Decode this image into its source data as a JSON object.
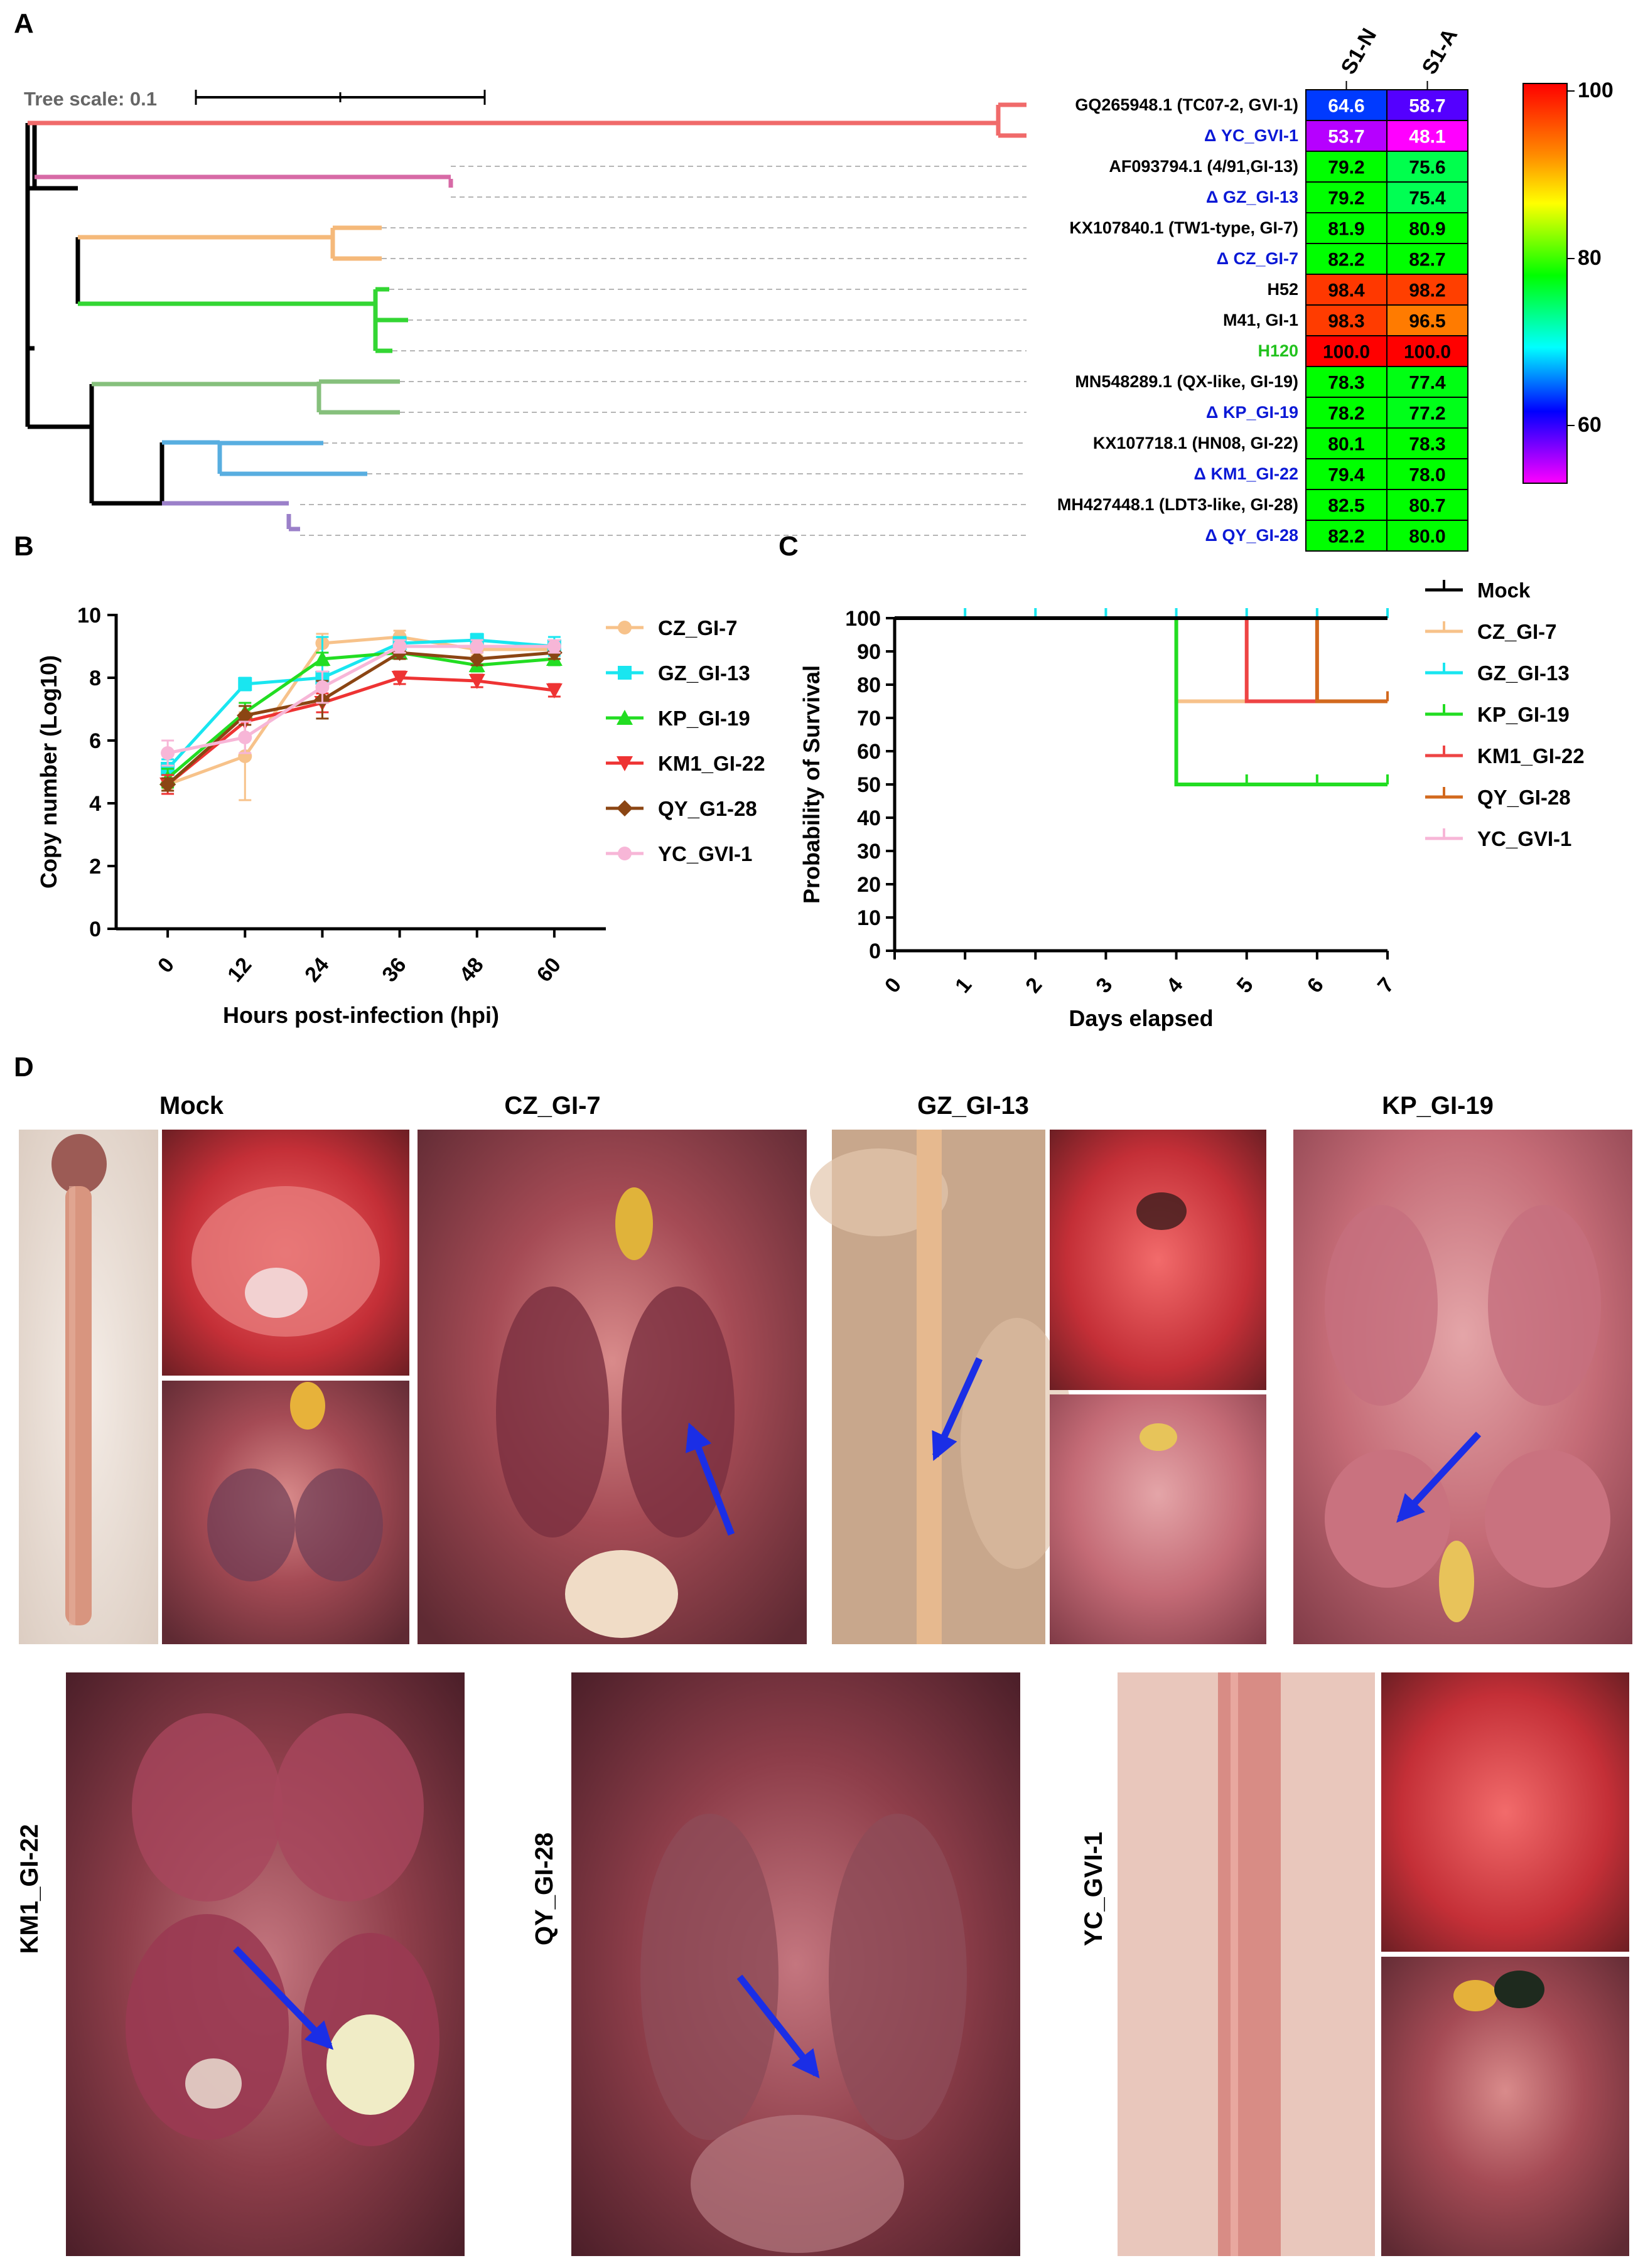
{
  "panels": {
    "a": "A",
    "b": "B",
    "c": "C",
    "d": "D"
  },
  "tree": {
    "scale_label": "Tree scale: 0.1",
    "leaves": [
      {
        "label": "GQ265948.1 (TC07-2, GVI-1)",
        "color": "#000000"
      },
      {
        "label": "Δ YC_GVI-1",
        "color": "#0a18d6"
      },
      {
        "label": "AF093794.1 (4/91,GI-13)",
        "color": "#000000"
      },
      {
        "label": "Δ GZ_GI-13",
        "color": "#0a18d6"
      },
      {
        "label": "KX107840.1 (TW1-type, GI-7)",
        "color": "#000000"
      },
      {
        "label": "Δ CZ_GI-7",
        "color": "#0a18d6"
      },
      {
        "label": "H52",
        "color": "#000000"
      },
      {
        "label": "M41, GI-1",
        "color": "#000000"
      },
      {
        "label": "H120",
        "color": "#22c21e"
      },
      {
        "label": "MN548289.1 (QX-like, GI-19)",
        "color": "#000000"
      },
      {
        "label": "Δ KP_GI-19",
        "color": "#0a18d6"
      },
      {
        "label": "KX107718.1 (HN08, GI-22)",
        "color": "#000000"
      },
      {
        "label": "Δ KM1_GI-22",
        "color": "#0a18d6"
      },
      {
        "label": "MH427448.1 (LDT3-like, GI-28)",
        "color": "#000000"
      },
      {
        "label": "Δ QY_GI-28",
        "color": "#0a18d6"
      }
    ],
    "clade_colors": [
      "#f06a6a",
      "#d76aa6",
      "#f5b97a",
      "#33d633",
      "#86c07c",
      "#58aee0",
      "#9b80c9"
    ]
  },
  "heatmap": {
    "columns": [
      "S1-N",
      "S1-A"
    ],
    "values": [
      [
        "64.6",
        "58.7"
      ],
      [
        "53.7",
        "48.1"
      ],
      [
        "79.2",
        "75.6"
      ],
      [
        "79.2",
        "75.4"
      ],
      [
        "81.9",
        "80.9"
      ],
      [
        "82.2",
        "82.7"
      ],
      [
        "98.4",
        "98.2"
      ],
      [
        "98.3",
        "96.5"
      ],
      [
        "100.0",
        "100.0"
      ],
      [
        "78.3",
        "77.4"
      ],
      [
        "78.2",
        "77.2"
      ],
      [
        "80.1",
        "78.3"
      ],
      [
        "79.4",
        "78.0"
      ],
      [
        "82.5",
        "80.7"
      ],
      [
        "82.2",
        "80.0"
      ]
    ],
    "scale_ticks": [
      "100",
      "80",
      "60"
    ]
  },
  "chart_data": [
    {
      "type": "line",
      "xlabel": "Hours post-infection (hpi)",
      "ylabel": "Copy number (Log10)",
      "x": [
        0,
        12,
        24,
        36,
        48,
        60
      ],
      "xticks": [
        "0",
        "12",
        "24",
        "36",
        "48",
        "60"
      ],
      "yticks": [
        "0",
        "2",
        "4",
        "6",
        "8",
        "10"
      ],
      "ylim": [
        0,
        10
      ],
      "series": [
        {
          "name": "CZ_GI-7",
          "color": "#f7c28a",
          "marker": "circle",
          "values": [
            4.6,
            5.5,
            9.1,
            9.3,
            8.9,
            8.9
          ],
          "err": [
            0.2,
            1.4,
            0.3,
            0.2,
            0.2,
            0.3
          ]
        },
        {
          "name": "GZ_GI-13",
          "color": "#19e6f0",
          "marker": "square",
          "values": [
            5.1,
            7.8,
            8.0,
            9.1,
            9.2,
            9.0
          ],
          "err": [
            0.3,
            0.2,
            1.3,
            0.2,
            0.2,
            0.3
          ]
        },
        {
          "name": "KP_GI-19",
          "color": "#22dd22",
          "marker": "triangle-up",
          "values": [
            4.8,
            6.9,
            8.6,
            8.8,
            8.4,
            8.6
          ],
          "err": [
            0.3,
            0.3,
            0.2,
            0.2,
            0.2,
            0.2
          ]
        },
        {
          "name": "KM1_GI-22",
          "color": "#ee3333",
          "marker": "triangle-down",
          "values": [
            4.6,
            6.6,
            7.2,
            8.0,
            7.9,
            7.6
          ],
          "err": [
            0.3,
            0.5,
            0.3,
            0.2,
            0.2,
            0.2
          ]
        },
        {
          "name": "QY_G1-28",
          "color": "#8b4513",
          "marker": "diamond",
          "values": [
            4.6,
            6.8,
            7.3,
            8.8,
            8.6,
            8.8
          ],
          "err": [
            0.2,
            0.3,
            0.6,
            0.2,
            0.2,
            0.2
          ]
        },
        {
          "name": "YC_GVI-1",
          "color": "#f7b6d7",
          "marker": "circle",
          "values": [
            5.6,
            6.1,
            7.7,
            9.0,
            9.0,
            9.0
          ],
          "err": [
            0.4,
            0.5,
            0.5,
            0.2,
            0.2,
            0.2
          ]
        }
      ]
    },
    {
      "type": "line",
      "step": true,
      "xlabel": "Days elapsed",
      "ylabel": "Probability of Survival",
      "xticks": [
        "0",
        "1",
        "2",
        "3",
        "4",
        "5",
        "6",
        "7"
      ],
      "yticks": [
        "0",
        "10",
        "20",
        "30",
        "40",
        "50",
        "60",
        "70",
        "80",
        "90",
        "100"
      ],
      "xlim": [
        0,
        7
      ],
      "ylim": [
        0,
        100
      ],
      "series": [
        {
          "name": "Mock",
          "color": "#000000",
          "steps": [
            [
              0,
              100
            ],
            [
              7,
              100
            ]
          ]
        },
        {
          "name": "CZ_GI-7",
          "color": "#f7c28a",
          "steps": [
            [
              0,
              100
            ],
            [
              4,
              75
            ],
            [
              7,
              75
            ]
          ]
        },
        {
          "name": "GZ_GI-13",
          "color": "#19e6f0",
          "steps": [
            [
              0,
              100
            ],
            [
              7,
              100
            ]
          ]
        },
        {
          "name": "KP_GI-19",
          "color": "#22dd22",
          "steps": [
            [
              0,
              100
            ],
            [
              4,
              50
            ],
            [
              7,
              50
            ]
          ]
        },
        {
          "name": "KM1_GI-22",
          "color": "#ee4444",
          "steps": [
            [
              0,
              100
            ],
            [
              5,
              75
            ],
            [
              7,
              75
            ]
          ]
        },
        {
          "name": "QY_GI-28",
          "color": "#d2691e",
          "steps": [
            [
              0,
              100
            ],
            [
              6,
              75
            ],
            [
              7,
              75
            ]
          ]
        },
        {
          "name": "YC_GVI-1",
          "color": "#f7b6d7",
          "steps": [
            [
              0,
              100
            ],
            [
              7,
              100
            ]
          ]
        }
      ]
    }
  ],
  "photos": {
    "titles": [
      "Mock",
      "CZ_GI-7",
      "GZ_GI-13",
      "KP_GI-19"
    ],
    "side_labels": [
      "KM1_GI-22",
      "QY_GI-28",
      "YC_GVI-1"
    ]
  }
}
